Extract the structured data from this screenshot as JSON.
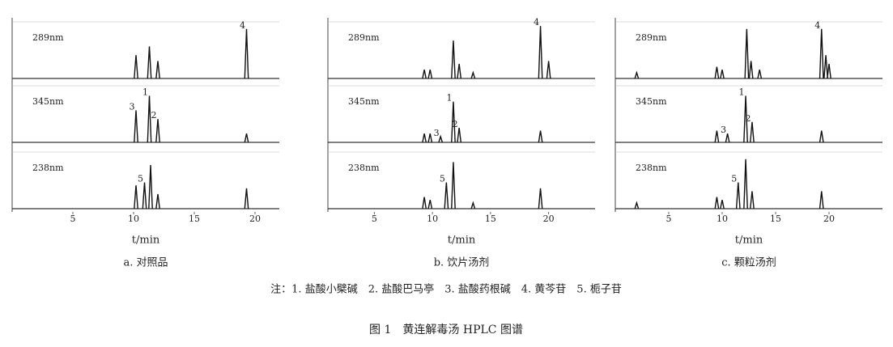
{
  "figure": {
    "panels": [
      {
        "caption": "a. 对照品",
        "xlabel": "t/min",
        "xlim": [
          0,
          22
        ],
        "xticks": [
          5,
          10,
          15,
          20
        ],
        "traces": [
          {
            "label": "289nm",
            "peaks": [
              {
                "t": 10.2,
                "h": 0.4
              },
              {
                "t": 11.3,
                "h": 0.55
              },
              {
                "t": 12,
                "h": 0.3
              },
              {
                "t": 19.3,
                "h": 0.85,
                "label": "4"
              }
            ]
          },
          {
            "label": "345nm",
            "peaks": [
              {
                "t": 10.2,
                "h": 0.55,
                "label": "3"
              },
              {
                "t": 11.3,
                "h": 0.8,
                "label": "1"
              },
              {
                "t": 12,
                "h": 0.4,
                "label": "2"
              },
              {
                "t": 19.3,
                "h": 0.15
              }
            ]
          },
          {
            "label": "238nm",
            "peaks": [
              {
                "t": 10.2,
                "h": 0.4
              },
              {
                "t": 10.9,
                "h": 0.45,
                "label": "5"
              },
              {
                "t": 11.4,
                "h": 0.75
              },
              {
                "t": 12,
                "h": 0.25
              },
              {
                "t": 19.3,
                "h": 0.35
              }
            ]
          }
        ]
      },
      {
        "caption": "b. 饮片汤剂",
        "xlabel": "t/min",
        "xlim": [
          1,
          24
        ],
        "xticks": [
          5,
          10,
          15,
          20
        ],
        "traces": [
          {
            "label": "289nm",
            "peaks": [
              {
                "t": 9.3,
                "h": 0.15
              },
              {
                "t": 9.8,
                "h": 0.15
              },
              {
                "t": 11.8,
                "h": 0.65
              },
              {
                "t": 12.3,
                "h": 0.25
              },
              {
                "t": 13.5,
                "h": 0.1
              },
              {
                "t": 19.3,
                "h": 0.9,
                "label": "4"
              },
              {
                "t": 20,
                "h": 0.3
              }
            ]
          },
          {
            "label": "345nm",
            "peaks": [
              {
                "t": 9.3,
                "h": 0.15
              },
              {
                "t": 9.8,
                "h": 0.15
              },
              {
                "t": 10.7,
                "h": 0.1,
                "label": "3"
              },
              {
                "t": 11.8,
                "h": 0.7,
                "label": "1"
              },
              {
                "t": 12.3,
                "h": 0.25,
                "label": "2"
              },
              {
                "t": 19.3,
                "h": 0.2
              }
            ]
          },
          {
            "label": "238nm",
            "peaks": [
              {
                "t": 9.3,
                "h": 0.2
              },
              {
                "t": 9.8,
                "h": 0.15
              },
              {
                "t": 11.2,
                "h": 0.45,
                "label": "5"
              },
              {
                "t": 11.8,
                "h": 0.8
              },
              {
                "t": 13.5,
                "h": 0.1
              },
              {
                "t": 19.3,
                "h": 0.35
              }
            ]
          }
        ]
      },
      {
        "caption": "c. 颗粒汤剂",
        "xlabel": "t/min",
        "xlim": [
          0,
          25
        ],
        "xticks": [
          5,
          10,
          15,
          20
        ],
        "traces": [
          {
            "label": "289nm",
            "peaks": [
              {
                "t": 2,
                "h": 0.1
              },
              {
                "t": 9.5,
                "h": 0.2
              },
              {
                "t": 10,
                "h": 0.15
              },
              {
                "t": 12.3,
                "h": 0.85
              },
              {
                "t": 12.7,
                "h": 0.3
              },
              {
                "t": 13.5,
                "h": 0.15
              },
              {
                "t": 19.3,
                "h": 0.85,
                "label": "4"
              },
              {
                "t": 19.7,
                "h": 0.4
              },
              {
                "t": 20,
                "h": 0.25
              }
            ]
          },
          {
            "label": "345nm",
            "peaks": [
              {
                "t": 9.5,
                "h": 0.2
              },
              {
                "t": 10.5,
                "h": 0.15,
                "label": "3"
              },
              {
                "t": 12.2,
                "h": 0.8,
                "label": "1"
              },
              {
                "t": 12.8,
                "h": 0.35,
                "label": "2"
              },
              {
                "t": 19.3,
                "h": 0.2
              }
            ]
          },
          {
            "label": "238nm",
            "peaks": [
              {
                "t": 2,
                "h": 0.1
              },
              {
                "t": 9.5,
                "h": 0.2
              },
              {
                "t": 10,
                "h": 0.15
              },
              {
                "t": 11.5,
                "h": 0.45,
                "label": "5"
              },
              {
                "t": 12.2,
                "h": 0.85
              },
              {
                "t": 12.8,
                "h": 0.3
              },
              {
                "t": 19.3,
                "h": 0.3
              }
            ]
          }
        ]
      }
    ],
    "note": "注：1. 盐酸小檗碱　2. 盐酸巴马亭　3. 盐酸药根碱　4. 黄芩苷　5. 栀子苷",
    "title": "图 1　黄连解毒汤 HPLC 图谱"
  }
}
